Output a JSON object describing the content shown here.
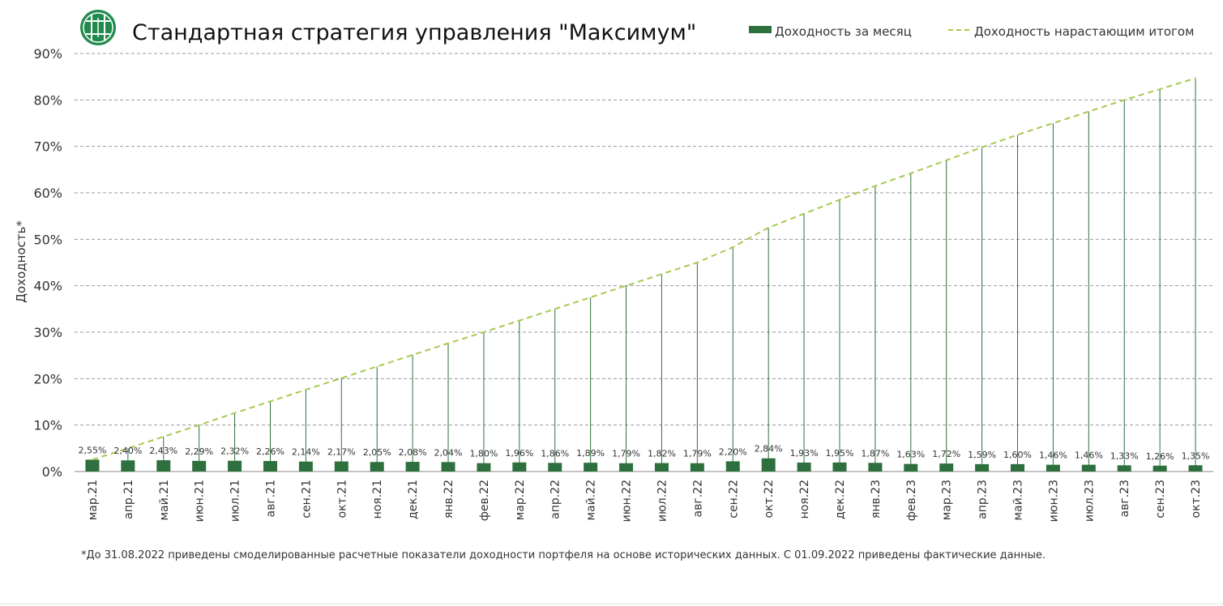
{
  "colors": {
    "bar": "#2e6f3e",
    "stem": "#2e6f3e",
    "cumulative_line": "#a6c94e",
    "grid": "#999999",
    "logo_outer": "#1f8a4c",
    "logo_inner": "#ffffff"
  },
  "logo": {
    "icon": "company-logo-icon"
  },
  "footnote": "*До 31.08.2022 приведены смоделированные расчетные показатели доходности портфеля на основе исторических данных. С 01.09.2022 приведены фактические данные.",
  "chart_data": {
    "type": "bar",
    "title": "Стандартная стратегия управления \"Максимум\"",
    "ylabel": "Доходность*",
    "xlabel": "",
    "ylim": [
      0,
      90
    ],
    "yticks": [
      "0%",
      "10%",
      "20%",
      "30%",
      "40%",
      "50%",
      "60%",
      "70%",
      "80%",
      "90%"
    ],
    "grid": true,
    "legend_position": "top-right",
    "categories": [
      "мар.21",
      "апр.21",
      "май.21",
      "июн.21",
      "июл.21",
      "авг.21",
      "сен.21",
      "окт.21",
      "ноя.21",
      "дек.21",
      "янв.22",
      "фев.22",
      "мар.22",
      "апр.22",
      "май.22",
      "июн.22",
      "июл.22",
      "авг.22",
      "сен.22",
      "окт.22",
      "ноя.22",
      "дек.22",
      "янв.23",
      "фев.23",
      "мар.23",
      "апр.23",
      "май.23",
      "июн.23",
      "июл.23",
      "авг.23",
      "сен.23",
      "окт.23"
    ],
    "series": [
      {
        "name": "Доходность за месяц",
        "type": "bar",
        "values": [
          2.55,
          2.4,
          2.43,
          2.29,
          2.32,
          2.26,
          2.14,
          2.17,
          2.05,
          2.08,
          2.04,
          1.8,
          1.96,
          1.86,
          1.89,
          1.79,
          1.82,
          1.79,
          2.2,
          2.84,
          1.93,
          1.95,
          1.87,
          1.63,
          1.72,
          1.59,
          1.6,
          1.46,
          1.46,
          1.33,
          1.26,
          1.35
        ],
        "labels": [
          "2,55%",
          "2,40%",
          "2,43%",
          "2,29%",
          "2,32%",
          "2,26%",
          "2,14%",
          "2,17%",
          "2,05%",
          "2,08%",
          "2,04%",
          "1,80%",
          "1,96%",
          "1,86%",
          "1,89%",
          "1,79%",
          "1,82%",
          "1,79%",
          "2,20%",
          "2,84%",
          "1,93%",
          "1,95%",
          "1,87%",
          "1,63%",
          "1,72%",
          "1,59%",
          "1,60%",
          "1,46%",
          "1,46%",
          "1,33%",
          "1,26%",
          "1,35%"
        ]
      },
      {
        "name": "Доходность нарастающим итогом",
        "type": "line",
        "style": "dashed",
        "values": [
          2.55,
          5.0,
          7.5,
          10.0,
          12.6,
          15.1,
          17.6,
          20.1,
          22.6,
          25.1,
          27.6,
          30.0,
          32.5,
          35.0,
          37.5,
          40.0,
          42.5,
          45.0,
          48.3,
          52.5,
          55.5,
          58.5,
          61.5,
          64.2,
          67.0,
          69.8,
          72.5,
          75.0,
          77.5,
          80.0,
          82.3,
          84.7
        ]
      }
    ]
  }
}
